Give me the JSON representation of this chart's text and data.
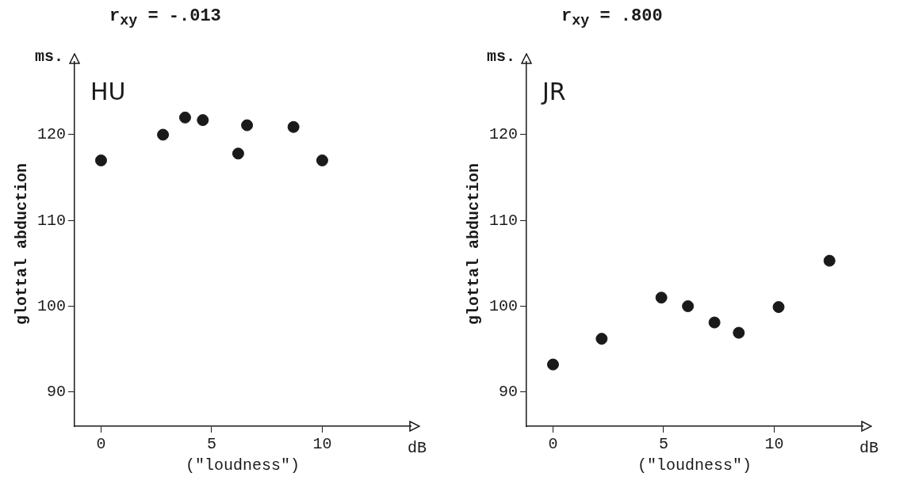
{
  "chart_data": [
    {
      "type": "scatter",
      "title": "r$_{xy}$ = -.013",
      "subtitle": "HU",
      "xlabel": "(\"loudness\")",
      "ylabel": "glottal abduction",
      "annotations": [
        "ms.",
        "dB"
      ],
      "marker": "circle",
      "grid": false,
      "legend": false,
      "xlim": [
        -1.2,
        14
      ],
      "xticks": [
        0,
        5,
        10
      ],
      "ylim": [
        86,
        128.5
      ],
      "yticks": [
        90,
        100,
        110,
        120
      ],
      "series": [
        {
          "color": "#1a1a1a",
          "x": [
            0,
            2.8,
            3.8,
            4.6,
            6.2,
            6.6,
            8.7,
            10
          ],
          "values": [
            117,
            120,
            122,
            121.7,
            117.8,
            121.1,
            120.9,
            117
          ]
        }
      ]
    },
    {
      "type": "scatter",
      "title": "r$_{xy}$ = .800",
      "subtitle": "JR",
      "xlabel": "(\"loudness\")",
      "ylabel": "glottal abduction",
      "annotations": [
        "ms.",
        "dB"
      ],
      "marker": "circle",
      "grid": false,
      "legend": false,
      "xlim": [
        -1.2,
        14
      ],
      "xticks": [
        0,
        5,
        10
      ],
      "ylim": [
        86,
        128.5
      ],
      "yticks": [
        90,
        100,
        110,
        120
      ],
      "series": [
        {
          "color": "#1a1a1a",
          "x": [
            0,
            2.2,
            4.9,
            6.1,
            7.3,
            8.4,
            10.2,
            12.5
          ],
          "values": [
            93.2,
            96.2,
            101,
            100,
            98.1,
            96.9,
            99.9,
            105.3
          ]
        }
      ]
    }
  ]
}
